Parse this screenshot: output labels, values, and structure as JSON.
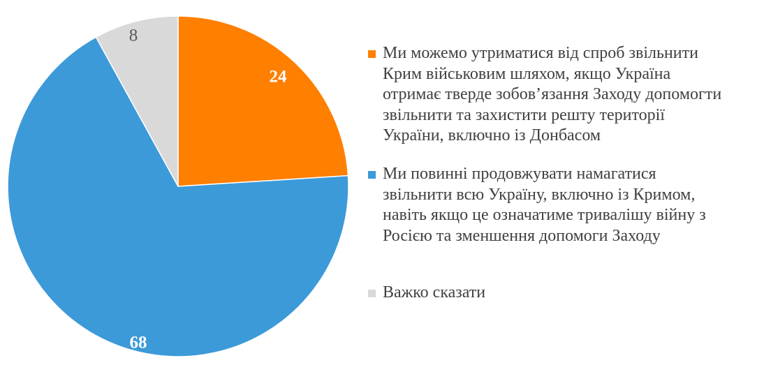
{
  "chart_data": {
    "type": "pie",
    "start_angle_deg": 0,
    "direction": "clockwise",
    "slices": [
      {
        "label": "Ми можемо утриматися від спроб звільнити\nКрим військовим шляхом, якщо Україна\nотримає тверде зобов’язання Заходу допомогти\nзвільнити та захистити решту території\nУкраїни, включно із Донбасом",
        "value": 24,
        "value_label": "24",
        "color": "#ff7f00",
        "label_color": "#ffffff",
        "label_weight": "bold"
      },
      {
        "label": "Ми повинні продовжувати намагатися\nзвільнити всю Україну, включно із Кримом,\nнавіть якщо це означатиме тривалішу війну з\nРосією та зменшення допомоги Заходу",
        "value": 68,
        "value_label": "68",
        "color": "#3c9ad9",
        "label_color": "#ffffff",
        "label_weight": "bold"
      },
      {
        "label": "Важко сказати",
        "value": 8,
        "value_label": "8",
        "color": "#d9d9d9",
        "label_color": "#595959",
        "label_weight": "normal"
      }
    ],
    "legend_position": "right"
  }
}
